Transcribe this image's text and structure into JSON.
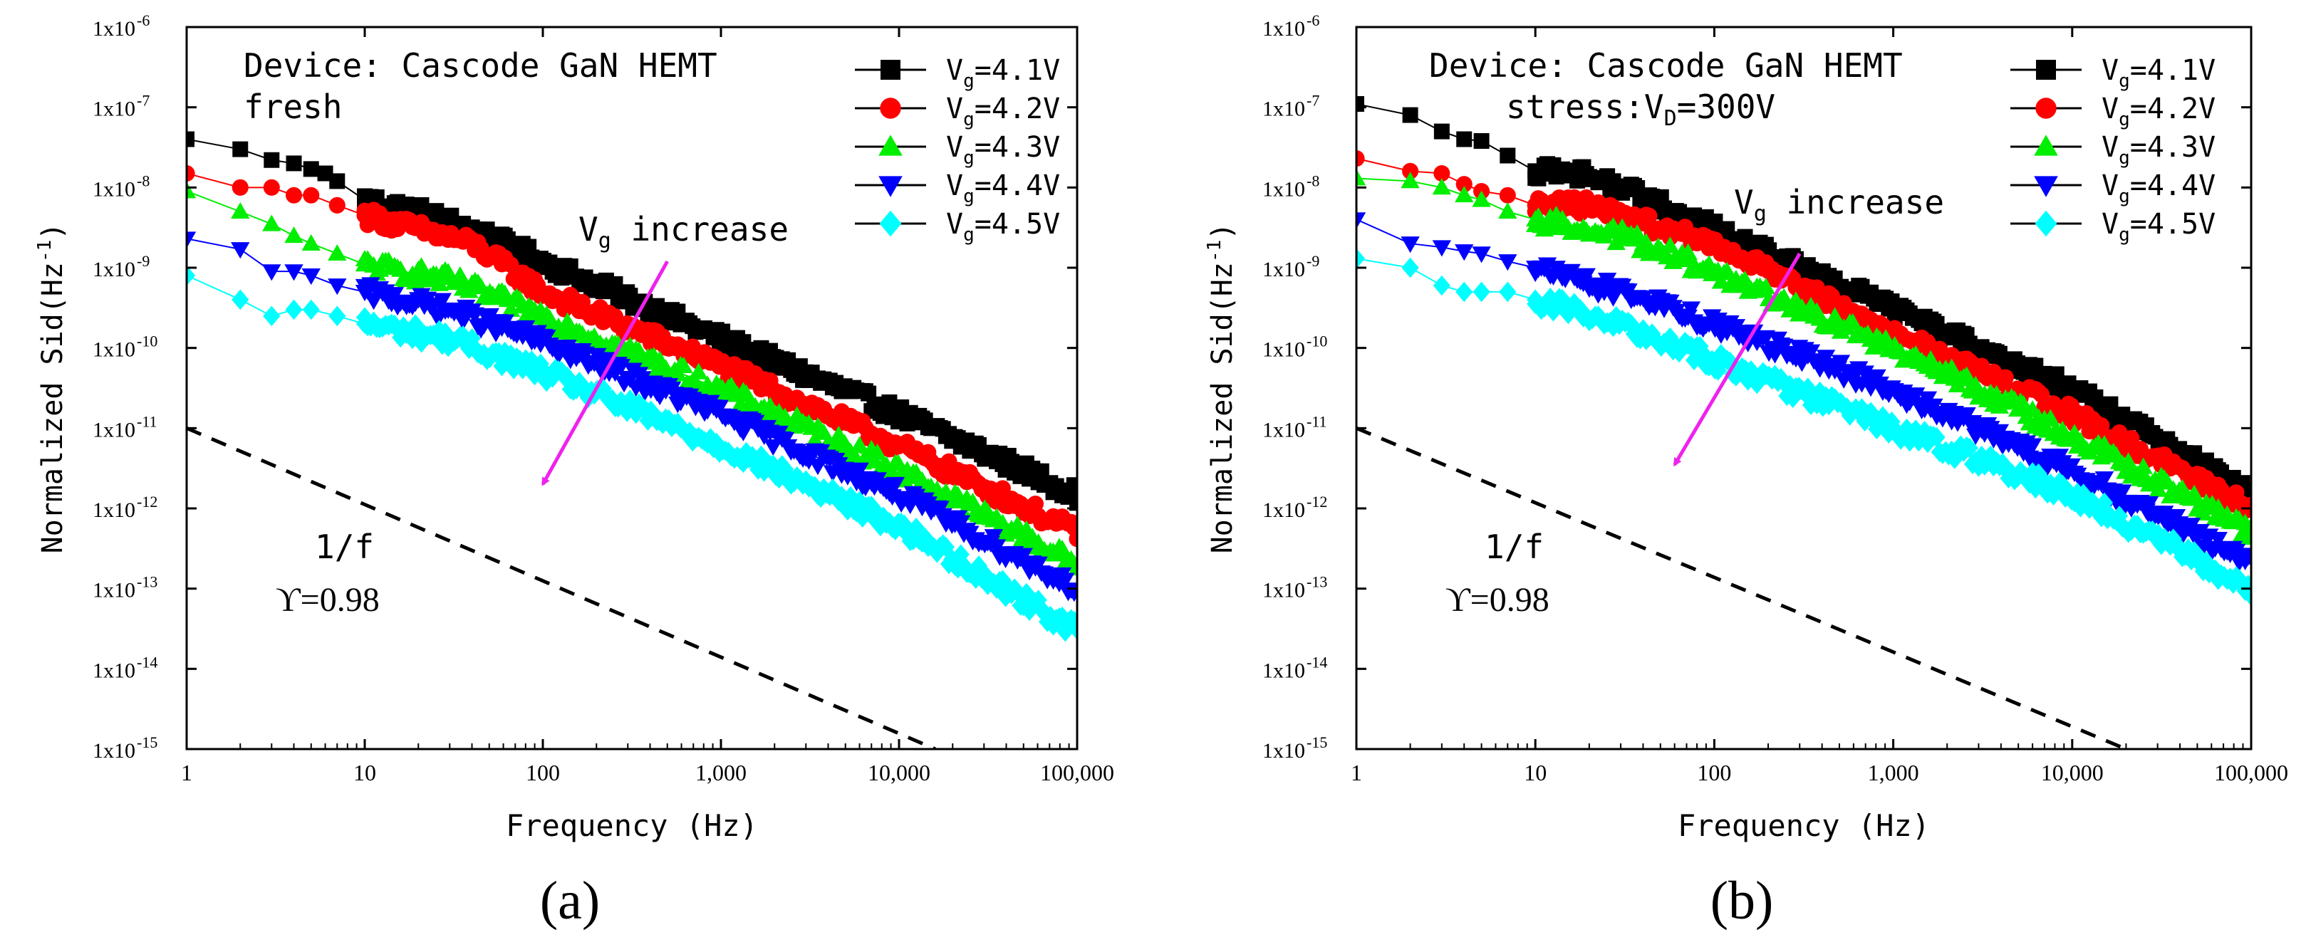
{
  "chart_data": [
    {
      "panel_label": "(a)",
      "type": "scatter",
      "x_scale": "log",
      "y_scale": "log",
      "xlim": [
        1,
        100000
      ],
      "ylim": [
        1e-15,
        1e-06
      ],
      "xlabel": "Frequency (Hz)",
      "ylabel": "Normalized Sid(Hz",
      "ylabel_sup": "-1",
      "ylabel_close": ")",
      "x_ticks": [
        {
          "v": 1,
          "label": "1"
        },
        {
          "v": 10,
          "label": "10"
        },
        {
          "v": 100,
          "label": "100"
        },
        {
          "v": 1000,
          "label": "1,000"
        },
        {
          "v": 10000,
          "label": "10,000"
        },
        {
          "v": 100000,
          "label": "100,000"
        }
      ],
      "y_ticks": [
        {
          "e": -6,
          "base": "1x10",
          "exp": "-6"
        },
        {
          "e": -7,
          "base": "1x10",
          "exp": "-7"
        },
        {
          "e": -8,
          "base": "1x10",
          "exp": "-8"
        },
        {
          "e": -9,
          "base": "1x10",
          "exp": "-9"
        },
        {
          "e": -10,
          "base": "1x10",
          "exp": "-10"
        },
        {
          "e": -11,
          "base": "1x10",
          "exp": "-11"
        },
        {
          "e": -12,
          "base": "1x10",
          "exp": "-12"
        },
        {
          "e": -13,
          "base": "1x10",
          "exp": "-13"
        },
        {
          "e": -14,
          "base": "1x10",
          "exp": "-14"
        },
        {
          "e": -15,
          "base": "1x10",
          "exp": "-15"
        }
      ],
      "annotation_line1": "Device: Cascode GaN HEMT",
      "annotation_line2": "fresh",
      "arrow_label_main": "V",
      "arrow_label_sub": "g",
      "arrow_label_rest": " increase",
      "arrow": {
        "from": [
          500,
          1.2e-09
        ],
        "to": [
          100,
          2e-12
        ],
        "color": "#ee22ee"
      },
      "slope_label_1": "1/f",
      "slope_label_2": "ϒ=0.98",
      "reference_line": {
        "from": [
          1,
          1e-11
        ],
        "to": [
          16000,
          1e-15
        ],
        "style": "dashed"
      },
      "legend_position": "top-right",
      "series": [
        {
          "name": "Vg=4.1V",
          "label_main": "V",
          "label_sub": "g",
          "label_rest": "=4.1V",
          "marker": "square",
          "color": "#000000",
          "points": [
            [
              1,
              4e-08
            ],
            [
              2,
              3e-08
            ],
            [
              3,
              2.2e-08
            ],
            [
              4,
              2e-08
            ],
            [
              5,
              1.7e-08
            ],
            [
              6,
              1.5e-08
            ],
            [
              7,
              1.2e-08
            ],
            [
              10,
              7e-09
            ],
            [
              20,
              5e-09
            ],
            [
              40,
              3e-09
            ],
            [
              100,
              1.2e-09
            ],
            [
              1000,
              1.3e-10
            ],
            [
              10000,
              1.5e-11
            ],
            [
              100000,
              1.5e-12
            ]
          ]
        },
        {
          "name": "Vg=4.2V",
          "label_main": "V",
          "label_sub": "g",
          "label_rest": "=4.2V",
          "marker": "circle",
          "color": "#ff0000",
          "points": [
            [
              1,
              1.5e-08
            ],
            [
              2,
              1e-08
            ],
            [
              3,
              1e-08
            ],
            [
              4,
              8e-09
            ],
            [
              5,
              8e-09
            ],
            [
              7,
              6e-09
            ],
            [
              10,
              4.5e-09
            ],
            [
              20,
              3e-09
            ],
            [
              40,
              2e-09
            ],
            [
              100,
              5e-10
            ],
            [
              1000,
              6e-11
            ],
            [
              10000,
              6e-12
            ],
            [
              100000,
              5e-13
            ]
          ]
        },
        {
          "name": "Vg=4.3V",
          "label_main": "V",
          "label_sub": "g",
          "label_rest": "=4.3V",
          "marker": "triangle-up",
          "color": "#00ee00",
          "points": [
            [
              1,
              9e-09
            ],
            [
              2,
              5e-09
            ],
            [
              3,
              3.5e-09
            ],
            [
              4,
              2.5e-09
            ],
            [
              5,
              2e-09
            ],
            [
              7,
              1.5e-09
            ],
            [
              10,
              1.1e-09
            ],
            [
              30,
              7e-10
            ],
            [
              100,
              2.5e-10
            ],
            [
              1000,
              3e-11
            ],
            [
              10000,
              3e-12
            ],
            [
              100000,
              2e-13
            ]
          ]
        },
        {
          "name": "Vg=4.4V",
          "label_main": "V",
          "label_sub": "g",
          "label_rest": "=4.4V",
          "marker": "triangle-down",
          "color": "#0000ff",
          "points": [
            [
              1,
              2.3e-09
            ],
            [
              2,
              1.7e-09
            ],
            [
              3,
              9e-10
            ],
            [
              4,
              9e-10
            ],
            [
              5,
              8e-10
            ],
            [
              7,
              6e-10
            ],
            [
              10,
              5e-10
            ],
            [
              30,
              3e-10
            ],
            [
              100,
              1.2e-10
            ],
            [
              1000,
              1.5e-11
            ],
            [
              10000,
              1.5e-12
            ],
            [
              100000,
              1e-13
            ]
          ]
        },
        {
          "name": "Vg=4.5V",
          "label_main": "V",
          "label_sub": "g",
          "label_rest": "=4.5V",
          "marker": "diamond",
          "color": "#00ffff",
          "points": [
            [
              1,
              8e-10
            ],
            [
              2,
              4e-10
            ],
            [
              3,
              2.5e-10
            ],
            [
              4,
              3e-10
            ],
            [
              5,
              3e-10
            ],
            [
              7,
              2.5e-10
            ],
            [
              10,
              2e-10
            ],
            [
              30,
              1.3e-10
            ],
            [
              100,
              5e-11
            ],
            [
              1000,
              6e-12
            ],
            [
              10000,
              6e-13
            ],
            [
              100000,
              3e-14
            ]
          ]
        }
      ]
    },
    {
      "panel_label": "(b)",
      "type": "scatter",
      "x_scale": "log",
      "y_scale": "log",
      "xlim": [
        1,
        100000
      ],
      "ylim": [
        1e-15,
        1e-06
      ],
      "xlabel": "Frequency (Hz)",
      "ylabel": "Normalized Sid(Hz",
      "ylabel_sup": "-1",
      "ylabel_close": ")",
      "x_ticks": [
        {
          "v": 1,
          "label": "1"
        },
        {
          "v": 10,
          "label": "10"
        },
        {
          "v": 100,
          "label": "100"
        },
        {
          "v": 1000,
          "label": "1,000"
        },
        {
          "v": 10000,
          "label": "10,000"
        },
        {
          "v": 100000,
          "label": "100,000"
        }
      ],
      "y_ticks": [
        {
          "e": -6,
          "base": "1x10",
          "exp": "-6"
        },
        {
          "e": -7,
          "base": "1x10",
          "exp": "-7"
        },
        {
          "e": -8,
          "base": "1x10",
          "exp": "-8"
        },
        {
          "e": -9,
          "base": "1x10",
          "exp": "-9"
        },
        {
          "e": -10,
          "base": "1x10",
          "exp": "-10"
        },
        {
          "e": -11,
          "base": "1x10",
          "exp": "-11"
        },
        {
          "e": -12,
          "base": "1x10",
          "exp": "-12"
        },
        {
          "e": -13,
          "base": "1x10",
          "exp": "-13"
        },
        {
          "e": -14,
          "base": "1x10",
          "exp": "-14"
        },
        {
          "e": -15,
          "base": "1x10",
          "exp": "-15"
        }
      ],
      "annotation_line1": "Device: Cascode GaN HEMT",
      "annotation_line2_main": "stress:V",
      "annotation_line2_sub": "D",
      "annotation_line2_rest": "=300V",
      "arrow_label_main": "V",
      "arrow_label_sub": "g",
      "arrow_label_rest": " increase",
      "arrow": {
        "from": [
          300,
          1.5e-09
        ],
        "to": [
          60,
          3.5e-12
        ],
        "color": "#ee22ee"
      },
      "slope_label_1": "1/f",
      "slope_label_2": "ϒ=0.98",
      "reference_line": {
        "from": [
          1,
          1e-11
        ],
        "to": [
          20000,
          1e-15
        ],
        "style": "dashed"
      },
      "legend_position": "top-right",
      "series": [
        {
          "name": "Vg=4.1V",
          "label_main": "V",
          "label_sub": "g",
          "label_rest": "=4.1V",
          "marker": "square",
          "color": "#000000",
          "points": [
            [
              1,
              1.1e-07
            ],
            [
              2,
              8e-08
            ],
            [
              3,
              5e-08
            ],
            [
              4,
              4e-08
            ],
            [
              5,
              3.8e-08
            ],
            [
              7,
              2.5e-08
            ],
            [
              10,
              1.6e-08
            ],
            [
              20,
              1.5e-08
            ],
            [
              30,
              1e-08
            ],
            [
              100,
              3e-09
            ],
            [
              1000,
              3e-10
            ],
            [
              10000,
              3e-11
            ],
            [
              100000,
              1.5e-12
            ]
          ]
        },
        {
          "name": "Vg=4.2V",
          "label_main": "V",
          "label_sub": "g",
          "label_rest": "=4.2V",
          "marker": "circle",
          "color": "#ff0000",
          "points": [
            [
              1,
              2.3e-08
            ],
            [
              2,
              1.6e-08
            ],
            [
              3,
              1.5e-08
            ],
            [
              4,
              1.1e-08
            ],
            [
              5,
              9e-09
            ],
            [
              7,
              8e-09
            ],
            [
              10,
              6e-09
            ],
            [
              20,
              6e-09
            ],
            [
              100,
              2e-09
            ],
            [
              1000,
              1.5e-10
            ],
            [
              10000,
              1.5e-11
            ],
            [
              100000,
              1e-12
            ]
          ]
        },
        {
          "name": "Vg=4.3V",
          "label_main": "V",
          "label_sub": "g",
          "label_rest": "=4.3V",
          "marker": "triangle-up",
          "color": "#00ee00",
          "points": [
            [
              1,
              1.3e-08
            ],
            [
              2,
              1.2e-08
            ],
            [
              3,
              1e-08
            ],
            [
              4,
              8e-09
            ],
            [
              5,
              7e-09
            ],
            [
              7,
              5e-09
            ],
            [
              10,
              4e-09
            ],
            [
              30,
              2.5e-09
            ],
            [
              100,
              9e-10
            ],
            [
              1000,
              1e-10
            ],
            [
              10000,
              8e-12
            ],
            [
              100000,
              5e-13
            ]
          ]
        },
        {
          "name": "Vg=4.4V",
          "label_main": "V",
          "label_sub": "g",
          "label_rest": "=4.4V",
          "marker": "triangle-down",
          "color": "#0000ff",
          "points": [
            [
              1,
              4e-09
            ],
            [
              2,
              2e-09
            ],
            [
              3,
              1.8e-09
            ],
            [
              4,
              1.6e-09
            ],
            [
              5,
              1.5e-09
            ],
            [
              7,
              1.2e-09
            ],
            [
              10,
              1e-09
            ],
            [
              30,
              5e-10
            ],
            [
              100,
              2e-10
            ],
            [
              1000,
              3e-11
            ],
            [
              10000,
              3e-12
            ],
            [
              100000,
              2e-13
            ]
          ]
        },
        {
          "name": "Vg=4.5V",
          "label_main": "V",
          "label_sub": "g",
          "label_rest": "=4.5V",
          "marker": "diamond",
          "color": "#00ffff",
          "points": [
            [
              1,
              1.3e-09
            ],
            [
              2,
              1e-09
            ],
            [
              3,
              6e-10
            ],
            [
              4,
              5e-10
            ],
            [
              5,
              5e-10
            ],
            [
              7,
              5e-10
            ],
            [
              10,
              4e-10
            ],
            [
              30,
              2e-10
            ],
            [
              100,
              7e-11
            ],
            [
              1000,
              1e-11
            ],
            [
              10000,
              1.5e-12
            ],
            [
              100000,
              1e-13
            ]
          ]
        }
      ]
    }
  ]
}
